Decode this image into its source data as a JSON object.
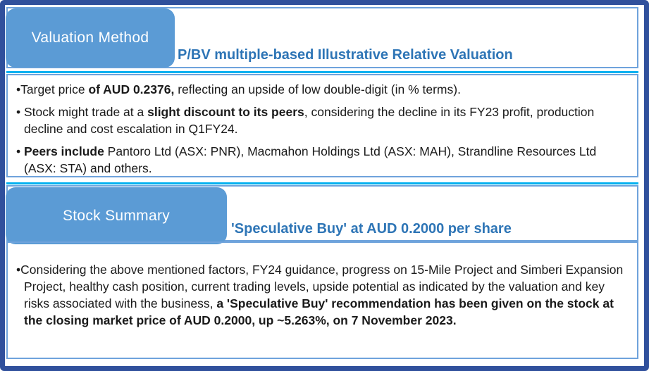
{
  "colors": {
    "outer_border": "#30509c",
    "box_border": "#6fa3dc",
    "tab_fill": "#5b9bd5",
    "title_blue": "#2e75b6",
    "cyan_line": "#00b0f0",
    "body_text": "#1a1a1a"
  },
  "sections": [
    {
      "tab_label": "Valuation Method",
      "title": "P/BV multiple-based Illustrative Relative Valuation",
      "bullets": [
        {
          "marker": "•",
          "pre": "Target price ",
          "bold": "of AUD 0.2376,",
          "post": " reflecting an upside of low double-digit (in % terms)."
        },
        {
          "marker": "• ",
          "pre": "Stock might trade at a ",
          "bold": "slight discount to its peers",
          "post": ", considering the decline in its FY23 profit, production decline and cost escalation in Q1FY24."
        },
        {
          "marker": "• ",
          "pre": "",
          "bold": "Peers include",
          "post": " Pantoro Ltd (ASX: PNR), Macmahon Holdings Ltd (ASX: MAH), Strandline Resources Ltd (ASX: STA) and others."
        }
      ]
    },
    {
      "tab_label": "Stock Summary",
      "title": "'Speculative Buy' at AUD 0.2000 per share",
      "bullets": [
        {
          "marker": "•",
          "pre": "Considering the above mentioned factors, FY24 guidance, progress on 15-Mile Project and Simberi Expansion Project, healthy cash position, current trading levels, upside potential as indicated by the valuation and key risks associated with the business, ",
          "bold": "a  'Speculative Buy' recommendation has been given on the stock at the closing market price of AUD 0.2000, up ~5.263%, on 7 November 2023.",
          "post": ""
        }
      ]
    }
  ]
}
